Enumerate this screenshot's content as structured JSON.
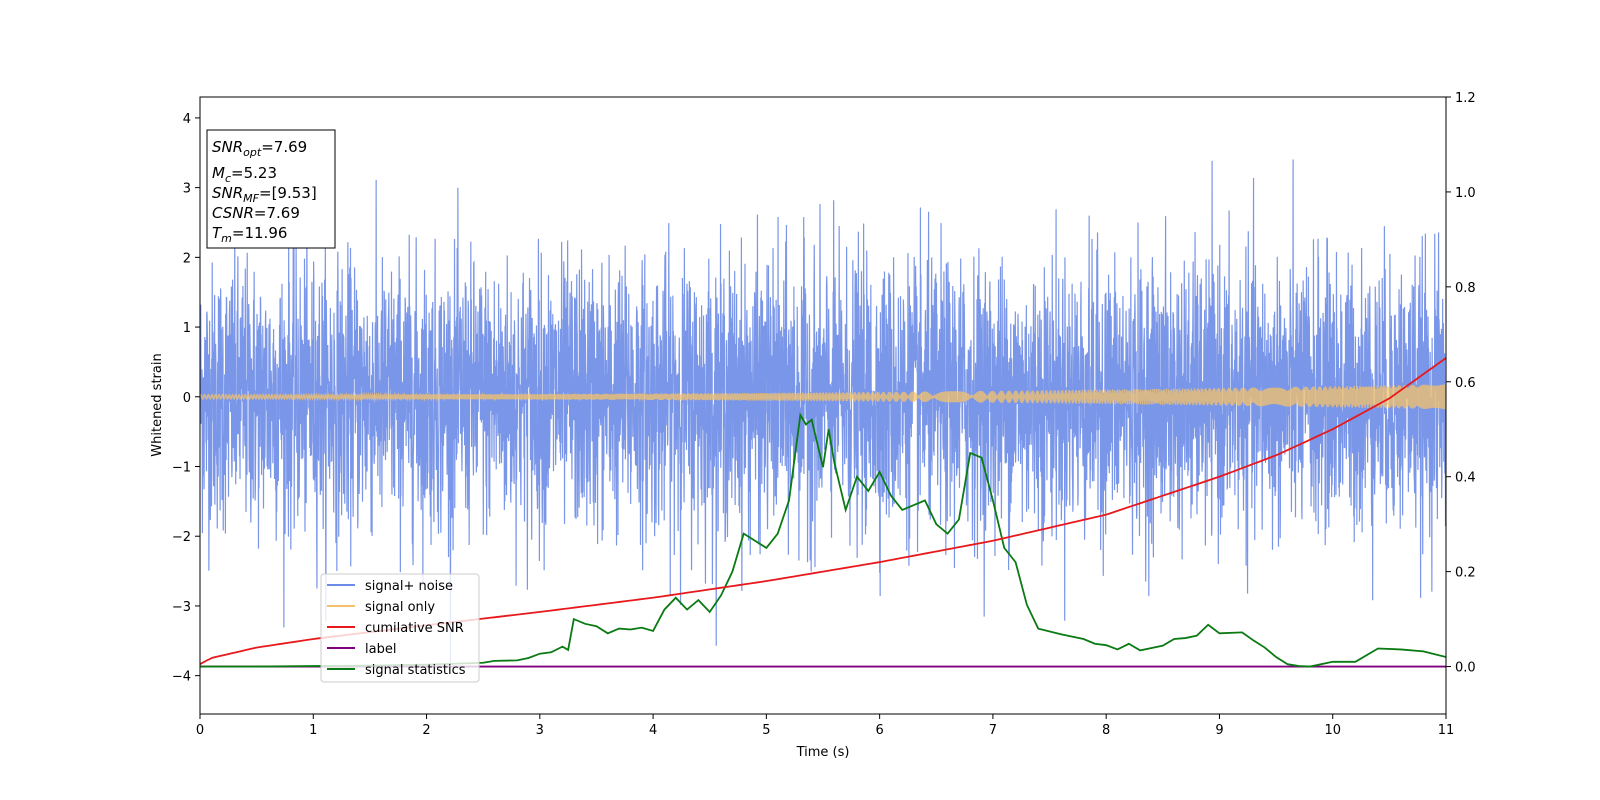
{
  "chart_data": {
    "type": "line",
    "xlabel": "Time (s)",
    "ylabel": "Whitened strain",
    "xlim": [
      0,
      11
    ],
    "ylim": [
      -4.55,
      4.3
    ],
    "y2lim": [
      -0.1,
      1.2
    ],
    "xticks": [
      "0",
      "1",
      "2",
      "3",
      "4",
      "5",
      "6",
      "7",
      "8",
      "9",
      "10",
      "11"
    ],
    "yticks": [
      "−4",
      "−3",
      "−2",
      "−1",
      "0",
      "1",
      "2",
      "3",
      "4"
    ],
    "y2ticks": [
      "0.0",
      "0.2",
      "0.4",
      "0.6",
      "0.8",
      "1.0",
      "1.2"
    ],
    "legend_position": "lower-left",
    "colors": {
      "noise": "#6b8be6",
      "signal": "#f5c26b",
      "cum_snr": "#e8191c",
      "label": "#7f007f",
      "stat": "#0a7a12"
    },
    "info": {
      "snr_opt": {
        "base": "SNR",
        "sub": "opt",
        "value": "=7.69"
      },
      "mc": {
        "base": "M",
        "sub": "c",
        "value": "=5.23"
      },
      "snr_mf": {
        "base": "SNR",
        "sub": "MF",
        "value": "=[9.53]"
      },
      "csnr": {
        "base": "CSNR",
        "value": "=7.69"
      },
      "tm": {
        "base": "T",
        "sub": "m",
        "value": "=11.96"
      }
    },
    "series": [
      {
        "name": "signal+ noise",
        "kind": "noise",
        "std": 1.0,
        "max_abs": 3.9,
        "axis": "left"
      },
      {
        "name": "signal only",
        "kind": "chirp",
        "amp_start": 0.03,
        "amp_end": 0.18,
        "axis": "left"
      },
      {
        "name": "cumilative SNR",
        "axis": "right",
        "x": [
          0,
          0.1,
          0.5,
          1,
          2,
          3,
          4,
          5,
          6,
          7,
          8,
          9,
          9.5,
          10,
          10.5,
          11
        ],
        "y": [
          0.005,
          0.018,
          0.04,
          0.058,
          0.087,
          0.115,
          0.145,
          0.18,
          0.22,
          0.265,
          0.32,
          0.4,
          0.445,
          0.5,
          0.565,
          0.65
        ]
      },
      {
        "name": "label",
        "axis": "right",
        "x": [
          0,
          11
        ],
        "y": [
          0,
          0
        ]
      },
      {
        "name": "signal statistics",
        "axis": "right",
        "x": [
          0,
          0.5,
          1,
          1.5,
          2,
          2.5,
          2.6,
          2.8,
          2.9,
          3.0,
          3.1,
          3.2,
          3.25,
          3.3,
          3.4,
          3.5,
          3.6,
          3.7,
          3.8,
          3.9,
          4.0,
          4.1,
          4.2,
          4.3,
          4.4,
          4.5,
          4.6,
          4.7,
          4.8,
          4.9,
          5.0,
          5.1,
          5.2,
          5.3,
          5.35,
          5.4,
          5.5,
          5.55,
          5.6,
          5.65,
          5.7,
          5.8,
          5.9,
          6.0,
          6.1,
          6.2,
          6.3,
          6.4,
          6.5,
          6.6,
          6.7,
          6.8,
          6.9,
          7.0,
          7.1,
          7.2,
          7.3,
          7.4,
          7.6,
          7.8,
          7.9,
          8.0,
          8.1,
          8.2,
          8.3,
          8.5,
          8.6,
          8.7,
          8.8,
          8.9,
          9.0,
          9.2,
          9.3,
          9.4,
          9.5,
          9.6,
          9.7,
          9.8,
          10.0,
          10.2,
          10.4,
          10.6,
          10.8,
          11.0
        ],
        "y": [
          0.0,
          0.0,
          0.001,
          0.002,
          0.004,
          0.008,
          0.012,
          0.013,
          0.018,
          0.027,
          0.03,
          0.042,
          0.035,
          0.1,
          0.09,
          0.085,
          0.07,
          0.08,
          0.078,
          0.082,
          0.075,
          0.12,
          0.145,
          0.12,
          0.14,
          0.115,
          0.15,
          0.2,
          0.28,
          0.265,
          0.25,
          0.28,
          0.35,
          0.53,
          0.51,
          0.52,
          0.42,
          0.5,
          0.43,
          0.38,
          0.33,
          0.4,
          0.37,
          0.41,
          0.36,
          0.33,
          0.34,
          0.35,
          0.3,
          0.28,
          0.31,
          0.45,
          0.44,
          0.35,
          0.25,
          0.22,
          0.13,
          0.08,
          0.068,
          0.058,
          0.048,
          0.045,
          0.036,
          0.048,
          0.034,
          0.044,
          0.058,
          0.06,
          0.065,
          0.088,
          0.07,
          0.072,
          0.055,
          0.04,
          0.02,
          0.005,
          0.001,
          0.0,
          0.01,
          0.01,
          0.038,
          0.036,
          0.032,
          0.02
        ]
      }
    ]
  }
}
